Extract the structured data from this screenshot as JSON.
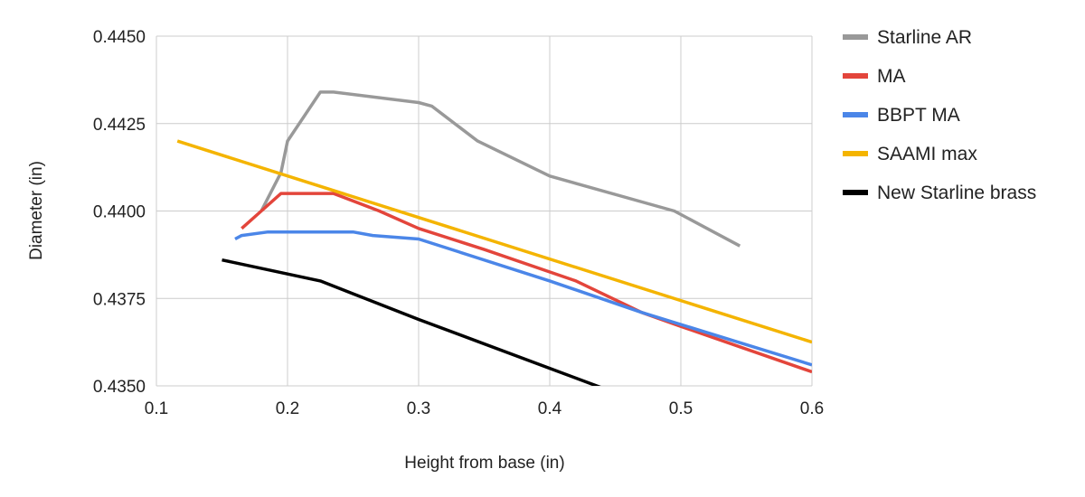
{
  "chart_data": {
    "type": "line",
    "title": "",
    "xlabel": "Height from base (in)",
    "ylabel": "Diameter (in)",
    "xlim": [
      0.1,
      0.6
    ],
    "ylim": [
      0.435,
      0.445
    ],
    "x_ticks": [
      "0.1",
      "0.2",
      "0.3",
      "0.4",
      "0.5",
      "0.6"
    ],
    "y_ticks": [
      "0.4350",
      "0.4375",
      "0.4400",
      "0.4425",
      "0.4450"
    ],
    "grid": true,
    "legend_position": "right",
    "series": [
      {
        "name": "Starline AR",
        "color": "#999999",
        "points": [
          [
            0.18,
            0.44
          ],
          [
            0.195,
            0.4411
          ],
          [
            0.2,
            0.442
          ],
          [
            0.225,
            0.4434
          ],
          [
            0.235,
            0.4434
          ],
          [
            0.3,
            0.4431
          ],
          [
            0.31,
            0.443
          ],
          [
            0.345,
            0.442
          ],
          [
            0.4,
            0.441
          ],
          [
            0.495,
            0.44
          ],
          [
            0.545,
            0.439
          ]
        ]
      },
      {
        "name": "MA",
        "color": "#e3453b",
        "points": [
          [
            0.165,
            0.4395
          ],
          [
            0.18,
            0.44
          ],
          [
            0.195,
            0.4405
          ],
          [
            0.235,
            0.4405
          ],
          [
            0.27,
            0.44
          ],
          [
            0.3,
            0.4395
          ],
          [
            0.35,
            0.4389
          ],
          [
            0.42,
            0.438
          ],
          [
            0.47,
            0.4371
          ],
          [
            0.5,
            0.4367
          ],
          [
            0.6,
            0.4354
          ]
        ]
      },
      {
        "name": "BBPT MA",
        "color": "#4b86e8",
        "points": [
          [
            0.16,
            0.4392
          ],
          [
            0.165,
            0.4393
          ],
          [
            0.185,
            0.4394
          ],
          [
            0.25,
            0.4394
          ],
          [
            0.265,
            0.4393
          ],
          [
            0.3,
            0.4392
          ],
          [
            0.4,
            0.438
          ],
          [
            0.47,
            0.4371
          ],
          [
            0.6,
            0.4356
          ]
        ]
      },
      {
        "name": "SAAMI max",
        "color": "#f4b400",
        "points": [
          [
            0.116,
            0.442
          ],
          [
            0.6,
            0.43625
          ]
        ]
      },
      {
        "name": "New Starline brass",
        "color": "#000000",
        "points": [
          [
            0.15,
            0.4386
          ],
          [
            0.225,
            0.438
          ],
          [
            0.3,
            0.4369
          ],
          [
            0.4,
            0.4355
          ],
          [
            0.45,
            0.4348
          ]
        ]
      }
    ]
  }
}
